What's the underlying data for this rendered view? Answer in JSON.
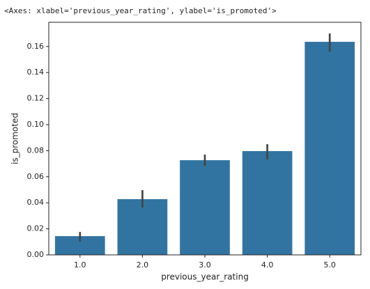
{
  "output_text": "<Axes: xlabel='previous_year_rating', ylabel='is_promoted'>",
  "chart_data": {
    "type": "bar",
    "xlabel": "previous_year_rating",
    "ylabel": "is_promoted",
    "categories": [
      "1.0",
      "2.0",
      "3.0",
      "4.0",
      "5.0"
    ],
    "values": [
      0.0144,
      0.0428,
      0.0727,
      0.0797,
      0.1636
    ],
    "error_low": [
      0.0102,
      0.0364,
      0.0684,
      0.0733,
      0.156
    ],
    "error_high": [
      0.0176,
      0.0497,
      0.077,
      0.085,
      0.17
    ],
    "color": "#3274a1",
    "error_color": "#444444",
    "ylim": [
      0,
      0.1786
    ],
    "yticks": [
      {
        "value": 0,
        "label": "0.00"
      },
      {
        "value": 0.02,
        "label": "0.02"
      },
      {
        "value": 0.04,
        "label": "0.04"
      },
      {
        "value": 0.06,
        "label": "0.06"
      },
      {
        "value": 0.08,
        "label": "0.08"
      },
      {
        "value": 0.1,
        "label": "0.10"
      },
      {
        "value": 0.12,
        "label": "0.12"
      },
      {
        "value": 0.14,
        "label": "0.14"
      },
      {
        "value": 0.16,
        "label": "0.16"
      }
    ],
    "grid": false
  }
}
